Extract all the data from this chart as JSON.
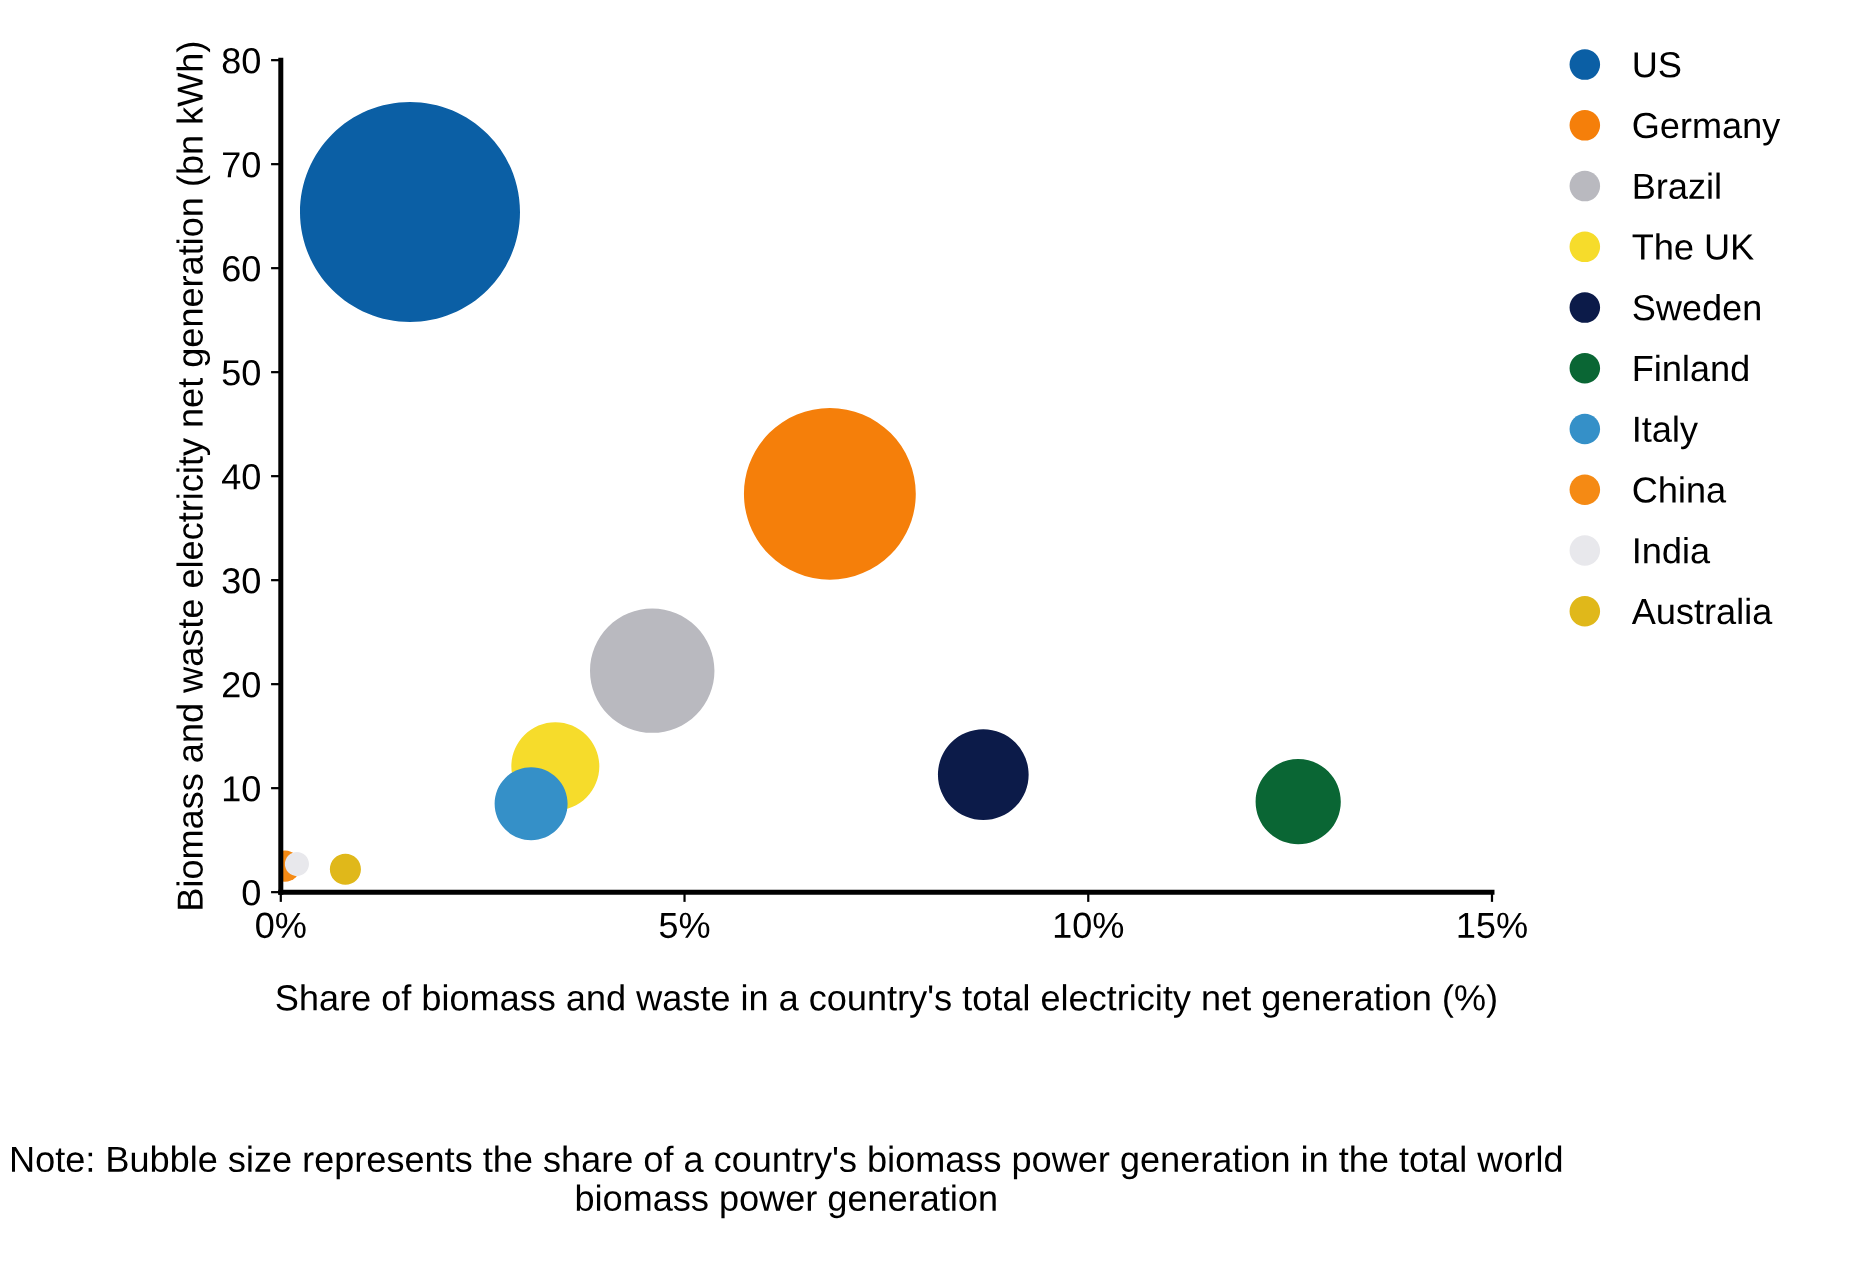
{
  "chart_data": {
    "type": "bubble",
    "xlabel": "Share of biomass and waste in a country's total electricity net generation (%)",
    "ylabel": "Biomass and waste electricity net generation (bn kWh)",
    "xlim": [
      0,
      15
    ],
    "xticks": [
      {
        "value": 0,
        "label": "0%"
      },
      {
        "value": 5,
        "label": "5%"
      },
      {
        "value": 10,
        "label": "10%"
      },
      {
        "value": 15,
        "label": "15%"
      }
    ],
    "ylim": [
      0,
      80
    ],
    "yticks": [
      0,
      10,
      20,
      30,
      40,
      50,
      60,
      70,
      80
    ],
    "grid": false,
    "legend": "right",
    "annotations": [
      "Note: Bubble size represents the share of a country's biomass power generation in the total world biomass power generation"
    ],
    "series": [
      {
        "name": "US",
        "color": "#0b5fa5",
        "x": [
          1.6
        ],
        "values": [
          65.4
        ],
        "sizes": [
          1
        ]
      },
      {
        "name": "Germany",
        "color": "#f57f0a",
        "x": [
          6.8
        ],
        "values": [
          38.3
        ],
        "sizes": [
          0.61
        ]
      },
      {
        "name": "Brazil",
        "color": "#b9b9bf",
        "x": [
          4.6
        ],
        "values": [
          21.3
        ],
        "sizes": [
          0.32
        ]
      },
      {
        "name": "The UK",
        "color": "#f6dc2b",
        "x": [
          3.4
        ],
        "values": [
          12.1
        ],
        "sizes": [
          0.16
        ]
      },
      {
        "name": "Sweden",
        "color": "#0c1b49",
        "x": [
          8.7
        ],
        "values": [
          11.3
        ],
        "sizes": [
          0.17
        ]
      },
      {
        "name": "Finland",
        "color": "#0a6634",
        "x": [
          12.6
        ],
        "values": [
          8.7
        ],
        "sizes": [
          0.15
        ]
      },
      {
        "name": "Italy",
        "color": "#3590c8",
        "x": [
          3.1
        ],
        "values": [
          8.5
        ],
        "sizes": [
          0.11
        ]
      },
      {
        "name": "China",
        "color": "#f58a14",
        "x": [
          0.05
        ],
        "values": [
          2.5
        ],
        "sizes": [
          0.02
        ]
      },
      {
        "name": "India",
        "color": "#e8e8ec",
        "x": [
          0.2
        ],
        "values": [
          2.7
        ],
        "sizes": [
          0.012
        ]
      },
      {
        "name": "Australia",
        "color": "#e0b81a",
        "x": [
          0.8
        ],
        "values": [
          2.2
        ],
        "sizes": [
          0.02
        ]
      }
    ]
  }
}
